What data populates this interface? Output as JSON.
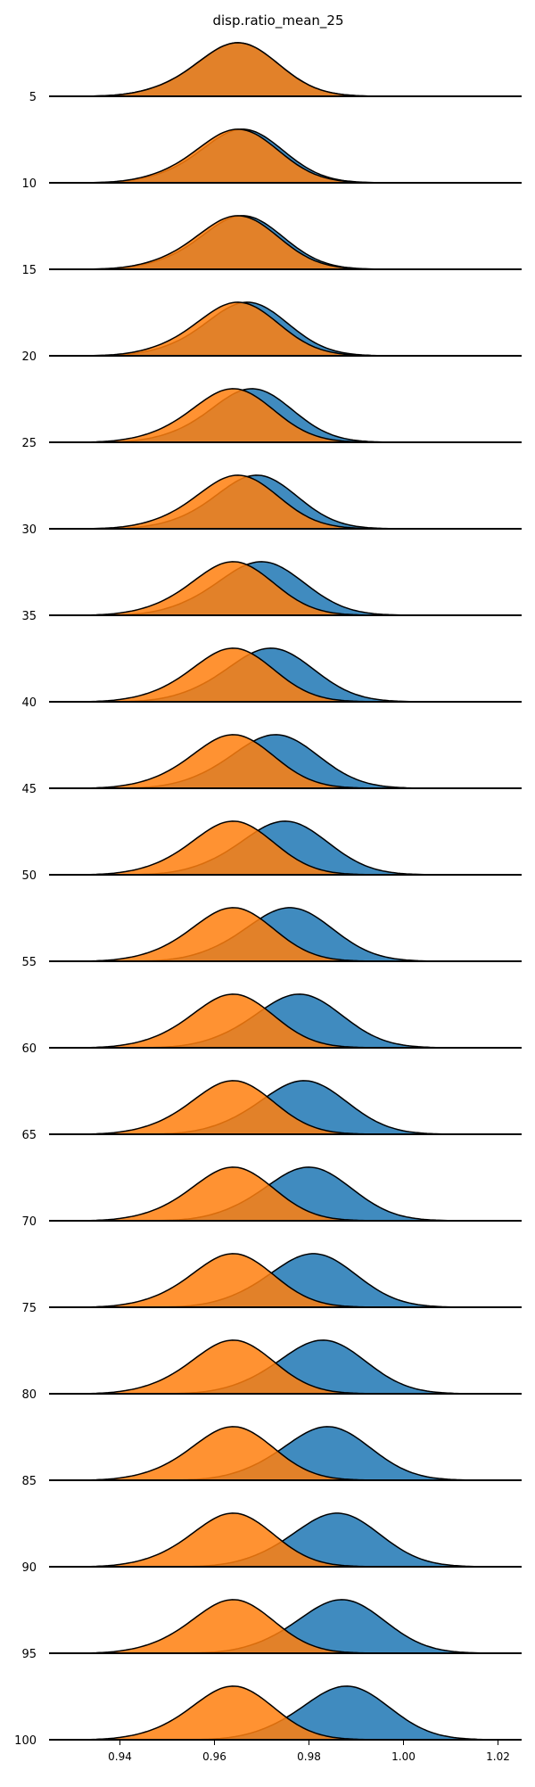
{
  "chart_data": {
    "type": "ridgeline",
    "title": "disp.ratio_mean_25",
    "xlabel": "",
    "ylabel": "",
    "xlim": [
      0.925,
      1.025
    ],
    "x_ticks": [
      0.94,
      0.96,
      0.98,
      1.0,
      1.02
    ],
    "x_tick_labels": [
      "0.94",
      "0.96",
      "0.98",
      "1.00",
      "1.02"
    ],
    "grid": false,
    "rows": [
      {
        "label": "5",
        "blue": {
          "mean": 0.965,
          "sd": 0.0085
        },
        "orange": {
          "mean": 0.965,
          "sd": 0.0085
        }
      },
      {
        "label": "10",
        "blue": {
          "mean": 0.966,
          "sd": 0.0085
        },
        "orange": {
          "mean": 0.965,
          "sd": 0.0085
        }
      },
      {
        "label": "15",
        "blue": {
          "mean": 0.966,
          "sd": 0.0085
        },
        "orange": {
          "mean": 0.965,
          "sd": 0.0085
        }
      },
      {
        "label": "20",
        "blue": {
          "mean": 0.967,
          "sd": 0.0085
        },
        "orange": {
          "mean": 0.965,
          "sd": 0.0085
        }
      },
      {
        "label": "25",
        "blue": {
          "mean": 0.968,
          "sd": 0.0085
        },
        "orange": {
          "mean": 0.964,
          "sd": 0.0085
        }
      },
      {
        "label": "30",
        "blue": {
          "mean": 0.969,
          "sd": 0.0085
        },
        "orange": {
          "mean": 0.965,
          "sd": 0.0085
        }
      },
      {
        "label": "35",
        "blue": {
          "mean": 0.97,
          "sd": 0.009
        },
        "orange": {
          "mean": 0.964,
          "sd": 0.0085
        }
      },
      {
        "label": "40",
        "blue": {
          "mean": 0.972,
          "sd": 0.009
        },
        "orange": {
          "mean": 0.964,
          "sd": 0.0085
        }
      },
      {
        "label": "45",
        "blue": {
          "mean": 0.973,
          "sd": 0.009
        },
        "orange": {
          "mean": 0.964,
          "sd": 0.0085
        }
      },
      {
        "label": "50",
        "blue": {
          "mean": 0.975,
          "sd": 0.009
        },
        "orange": {
          "mean": 0.964,
          "sd": 0.0085
        }
      },
      {
        "label": "55",
        "blue": {
          "mean": 0.976,
          "sd": 0.009
        },
        "orange": {
          "mean": 0.964,
          "sd": 0.0085
        }
      },
      {
        "label": "60",
        "blue": {
          "mean": 0.978,
          "sd": 0.009
        },
        "orange": {
          "mean": 0.964,
          "sd": 0.0085
        }
      },
      {
        "label": "65",
        "blue": {
          "mean": 0.979,
          "sd": 0.009
        },
        "orange": {
          "mean": 0.964,
          "sd": 0.0085
        }
      },
      {
        "label": "70",
        "blue": {
          "mean": 0.98,
          "sd": 0.009
        },
        "orange": {
          "mean": 0.964,
          "sd": 0.0085
        }
      },
      {
        "label": "75",
        "blue": {
          "mean": 0.981,
          "sd": 0.009
        },
        "orange": {
          "mean": 0.964,
          "sd": 0.0085
        }
      },
      {
        "label": "80",
        "blue": {
          "mean": 0.983,
          "sd": 0.009
        },
        "orange": {
          "mean": 0.964,
          "sd": 0.0085
        }
      },
      {
        "label": "85",
        "blue": {
          "mean": 0.984,
          "sd": 0.009
        },
        "orange": {
          "mean": 0.964,
          "sd": 0.0085
        }
      },
      {
        "label": "90",
        "blue": {
          "mean": 0.986,
          "sd": 0.009
        },
        "orange": {
          "mean": 0.964,
          "sd": 0.0085
        }
      },
      {
        "label": "95",
        "blue": {
          "mean": 0.987,
          "sd": 0.009
        },
        "orange": {
          "mean": 0.964,
          "sd": 0.0085
        }
      },
      {
        "label": "100",
        "blue": {
          "mean": 0.988,
          "sd": 0.009
        },
        "orange": {
          "mean": 0.964,
          "sd": 0.0085
        }
      }
    ],
    "colors": {
      "blue": "#1f77b4",
      "orange": "#ff7f0e",
      "outline": "#000000",
      "baseline": "#000000"
    }
  }
}
